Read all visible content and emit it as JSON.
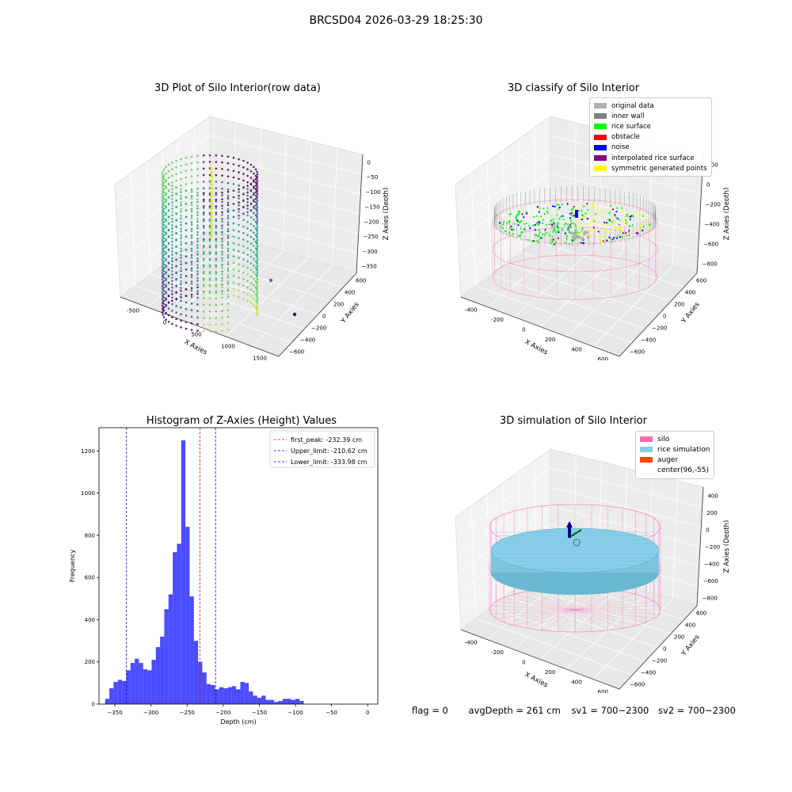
{
  "suptitle": "BRCSD04 2026-03-29 18:25:30",
  "panels": {
    "raw": {
      "title": "3D Plot of Silo Interior(row data)",
      "xlabel": "X Axies",
      "ylabel": "Y Axies",
      "zlabel": "Z Axies (Depth)",
      "xticks": [
        "-500",
        "0",
        "500",
        "1000",
        "1500"
      ],
      "yticks": [
        "600",
        "400",
        "200",
        "0",
        "−200",
        "−400",
        "−600"
      ],
      "zticks": [
        "0",
        "−50",
        "−100",
        "−150",
        "−200",
        "−250",
        "−300",
        "−350"
      ],
      "colormap": "viridis"
    },
    "classify": {
      "title": "3D classify of Silo Interior",
      "xlabel": "X Axies",
      "ylabel": "Y Axies",
      "zlabel": "Z Axies (Depth)",
      "xticks": [
        "-400",
        "-200",
        "0",
        "200",
        "400",
        "600"
      ],
      "yticks": [
        "600",
        "400",
        "200",
        "0",
        "−200",
        "−400",
        "−600"
      ],
      "zticks": [
        "200",
        "0",
        "−200",
        "−400",
        "−600",
        "−800"
      ],
      "legend": [
        {
          "label": "original data",
          "color": "#b0b0b0"
        },
        {
          "label": "inner wall",
          "color": "#808080"
        },
        {
          "label": "rice surface",
          "color": "#00ff00"
        },
        {
          "label": "obstacle",
          "color": "#ff0000"
        },
        {
          "label": "noise",
          "color": "#0000ff"
        },
        {
          "label": "interpolated rice surface",
          "color": "#800080"
        },
        {
          "label": "symmetric generated points",
          "color": "#ffff00"
        }
      ],
      "silo_color": "#ff69b4"
    },
    "simulation": {
      "title": "3D simulation of Silo Interior",
      "xlabel": "X Axies",
      "ylabel": "Y Axies",
      "zlabel": "Z Axies (Depth)",
      "xticks": [
        "-400",
        "-200",
        "0",
        "200",
        "400",
        "600"
      ],
      "yticks": [
        "600",
        "400",
        "200",
        "0",
        "−200",
        "−400",
        "−600"
      ],
      "zticks": [
        "400",
        "200",
        "0",
        "−200",
        "−400",
        "−600",
        "−800"
      ],
      "legend": [
        {
          "label": "silo",
          "color": "#ff69b4"
        },
        {
          "label": "rice simulation",
          "color": "#87ceeb"
        },
        {
          "label": "auger",
          "color": "#ff4500"
        },
        {
          "label": "center(96,-55)",
          "color": ""
        }
      ]
    }
  },
  "chart_data": {
    "type": "bar",
    "title": "Histogram of Z-Axies (Height) Values",
    "xlabel": "Depth (cm)",
    "ylabel": "Frequency",
    "xlim": [
      -372,
      14
    ],
    "ylim": [
      0,
      1310
    ],
    "xticks": [
      -350,
      -300,
      -250,
      -200,
      -150,
      -100,
      -50,
      0
    ],
    "xtick_labels": [
      "−350",
      "−300",
      "−250",
      "−200",
      "−150",
      "−100",
      "−50",
      "0"
    ],
    "yticks": [
      0,
      200,
      400,
      600,
      800,
      1000,
      1200
    ],
    "bin_start": -363.5,
    "bin_width": 5.85,
    "values": [
      25,
      75,
      105,
      115,
      110,
      160,
      195,
      215,
      195,
      165,
      160,
      210,
      270,
      320,
      450,
      520,
      720,
      760,
      1250,
      840,
      510,
      300,
      200,
      150,
      95,
      90,
      70,
      80,
      75,
      80,
      85,
      70,
      105,
      100,
      60,
      40,
      30,
      40,
      20,
      20,
      10,
      15,
      25,
      25,
      20,
      25,
      15
    ],
    "bar_color": "#0000ff",
    "lines": [
      {
        "label": "first_peak: -232.39 cm",
        "x": -232.39,
        "color": "#ff0000"
      },
      {
        "label": "Upper_limit: -210.62 cm",
        "x": -210.62,
        "color": "#0000ff"
      },
      {
        "label": "Lower_limit: -333.98 cm",
        "x": -333.98,
        "color": "#0000ff"
      }
    ],
    "legend_position": "top-right"
  },
  "status": {
    "flag": "flag = 0",
    "avg": "avgDepth = 261 cm",
    "sv1": "sv1 = 700~2300",
    "sv2": "sv2 = 700~2300"
  }
}
